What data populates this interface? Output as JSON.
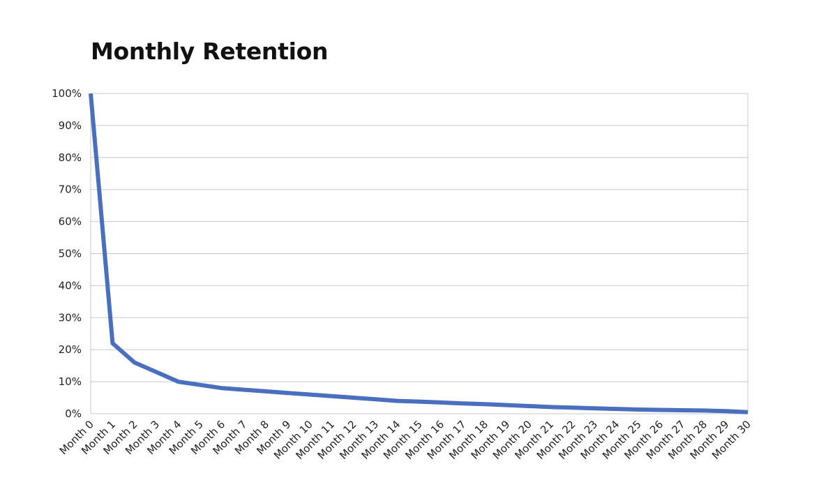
{
  "chart_data": {
    "type": "line",
    "title": "Monthly Retention",
    "xlabel": "",
    "ylabel": "",
    "categories": [
      "Month 0",
      "Month 1",
      "Month 2",
      "Month 3",
      "Month 4",
      "Month 5",
      "Month 6",
      "Month 7",
      "Month 8",
      "Month 9",
      "Month 10",
      "Month 11",
      "Month 12",
      "Month 13",
      "Month 14",
      "Month 15",
      "Month 16",
      "Month 17",
      "Month 18",
      "Month 19",
      "Month 20",
      "Month 21",
      "Month 22",
      "Month 23",
      "Month 24",
      "Month 25",
      "Month 26",
      "Month 27",
      "Month 28",
      "Month 29",
      "Month 30"
    ],
    "series": [
      {
        "values": [
          100,
          22,
          16,
          13,
          10,
          9,
          8,
          7.5,
          7,
          6.5,
          6,
          5.5,
          5,
          4.5,
          4,
          3.8,
          3.5,
          3.2,
          3,
          2.7,
          2.4,
          2.1,
          1.9,
          1.7,
          1.5,
          1.3,
          1.2,
          1.1,
          1,
          0.8,
          0.5
        ]
      }
    ],
    "ylim": [
      0,
      100
    ],
    "yticks": [
      0,
      10,
      20,
      30,
      40,
      50,
      60,
      70,
      80,
      90,
      100
    ],
    "ytick_labels": [
      "0%",
      "10%",
      "20%",
      "30%",
      "40%",
      "50%",
      "60%",
      "70%",
      "80%",
      "90%",
      "100%"
    ],
    "grid": true,
    "line_color": "#4a6fbf"
  }
}
